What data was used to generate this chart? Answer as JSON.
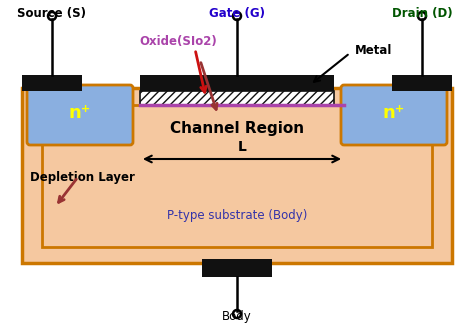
{
  "bg_color": "#ffffff",
  "substrate_color": "#f5c8a0",
  "substrate_border": "#cc7700",
  "n_region_color": "#8aafe0",
  "n_border_color": "#cc7700",
  "metal_color": "#111111",
  "source_label": "Source (S)",
  "gate_label": "Gate (G)",
  "drain_label": "Drain (D)",
  "source_color": "#000000",
  "gate_color": "#2200cc",
  "drain_color": "#005500",
  "channel_label": "Channel Region",
  "depletion_label": "Depletion Layer",
  "ptype_label": "P-type substrate (Body)",
  "body_label": "Body",
  "metal_label": "Metal",
  "oxide_label": "Oxide(SIo2)",
  "n_label": "n⁺",
  "L_label": "L",
  "purple_line": "#aa44aa",
  "red_arrow": "#cc1111",
  "dark_red_arrow": "#993333",
  "ptype_color": "#3333aa"
}
